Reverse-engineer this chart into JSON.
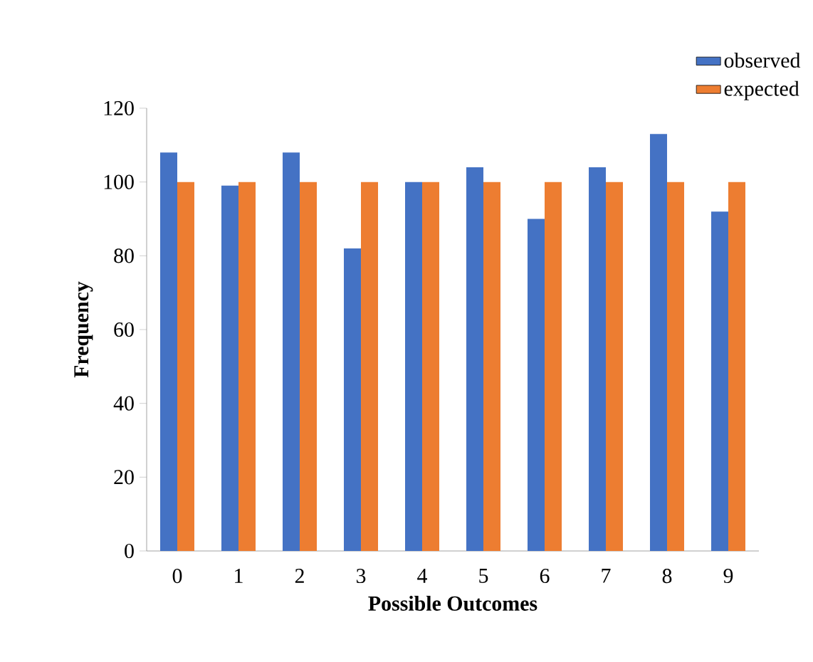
{
  "chart_data": {
    "type": "bar",
    "xlabel": "Possible Outcomes",
    "ylabel": "Frequency",
    "categories": [
      "0",
      "1",
      "2",
      "3",
      "4",
      "5",
      "6",
      "7",
      "8",
      "9"
    ],
    "series": [
      {
        "name": "observed",
        "color": "#4472c4",
        "values": [
          108,
          99,
          108,
          82,
          100,
          104,
          90,
          104,
          113,
          92
        ]
      },
      {
        "name": "expected",
        "color": "#ed7d31",
        "values": [
          100,
          100,
          100,
          100,
          100,
          100,
          100,
          100,
          100,
          100
        ]
      }
    ],
    "ylim": [
      0,
      120
    ],
    "yticks": [
      0,
      20,
      40,
      60,
      80,
      100,
      120
    ],
    "legend": "top right"
  }
}
